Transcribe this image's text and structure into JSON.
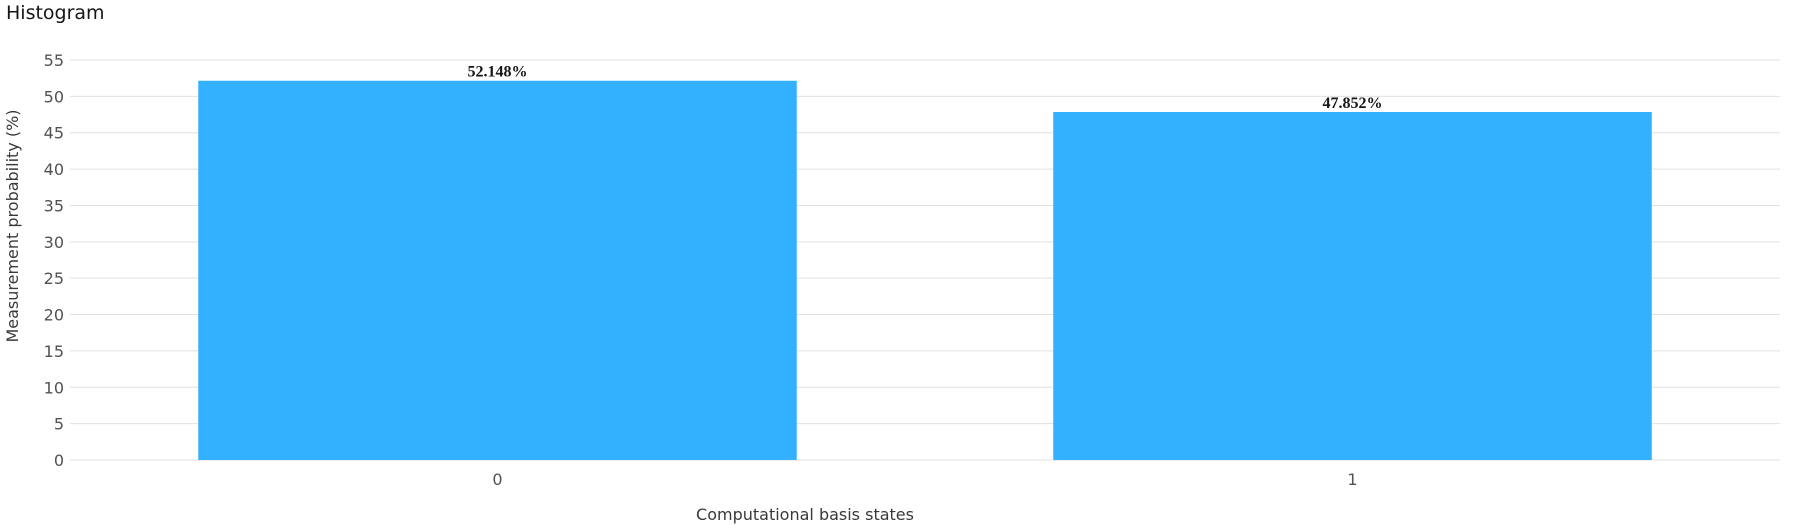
{
  "chart_data": {
    "type": "bar",
    "title": "Histogram",
    "xlabel": "Computational basis states",
    "ylabel": "Measurement probability (%)",
    "categories": [
      "0",
      "1"
    ],
    "values": [
      52.148,
      47.852
    ],
    "data_labels": [
      "52.148%",
      "47.852%"
    ],
    "ylim": [
      0,
      55
    ],
    "yticks": [
      0,
      5,
      10,
      15,
      20,
      25,
      30,
      35,
      40,
      45,
      50,
      55
    ],
    "grid": true,
    "legend": "none",
    "bar_color": "#33b1ff",
    "grid_color": "#e0e0e0"
  }
}
